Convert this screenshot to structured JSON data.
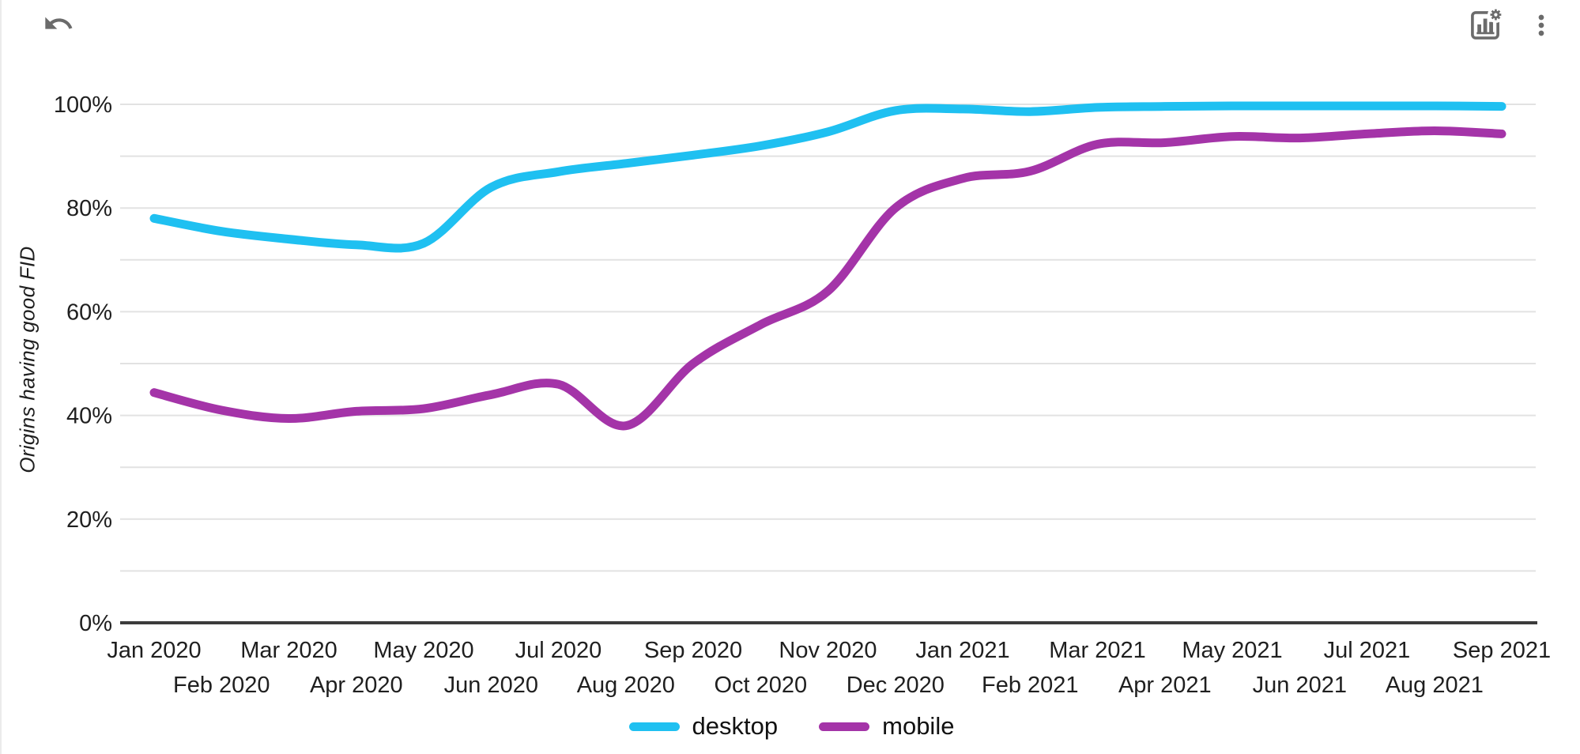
{
  "toolbar": {
    "left_icon": "undo-arrow-icon",
    "right_icons": [
      "chart-settings-icon",
      "more-vert-menu-icon"
    ]
  },
  "chart_data": {
    "type": "line",
    "title": "",
    "ylabel": "Origins having good FID",
    "xlabel": "",
    "categories": [
      "Jan 2020",
      "Feb 2020",
      "Mar 2020",
      "Apr 2020",
      "May 2020",
      "Jun 2020",
      "Jul 2020",
      "Aug 2020",
      "Sep 2020",
      "Oct 2020",
      "Nov 2020",
      "Dec 2020",
      "Jan 2021",
      "Feb 2021",
      "Mar 2021",
      "Apr 2021",
      "May 2021",
      "Jun 2021",
      "Jul 2021",
      "Aug 2021",
      "Sep 2021"
    ],
    "series": [
      {
        "name": "desktop",
        "color": "#1FC0F1",
        "values": [
          78,
          75.5,
          74,
          72.9,
          73.2,
          84,
          87,
          88.6,
          90.2,
          92,
          94.7,
          98.8,
          99.1,
          98.6,
          99.4,
          99.6,
          99.7,
          99.7,
          99.7,
          99.7,
          99.6
        ]
      },
      {
        "name": "mobile",
        "color": "#A434A8",
        "values": [
          44.4,
          41,
          39.4,
          40.8,
          41.3,
          44,
          46,
          38,
          50,
          57.5,
          64,
          80,
          85.7,
          87.1,
          92.3,
          92.6,
          93.8,
          93.5,
          94.3,
          94.9,
          94.3
        ]
      }
    ],
    "ylim": [
      0,
      100
    ],
    "ytick_labels": [
      "0%",
      "20%",
      "40%",
      "60%",
      "80%",
      "100%"
    ],
    "y_grid_step_percent": 10,
    "y_label_step_percent": 20,
    "x_label_layout": "staggered-two-rows",
    "grid": true,
    "legend_position": "bottom-center"
  },
  "colors": {
    "grid": "#e2e2e2",
    "axis": "#3c3c3c",
    "tick_label": "#1f1f1f",
    "icon": "#6b6b6b"
  }
}
